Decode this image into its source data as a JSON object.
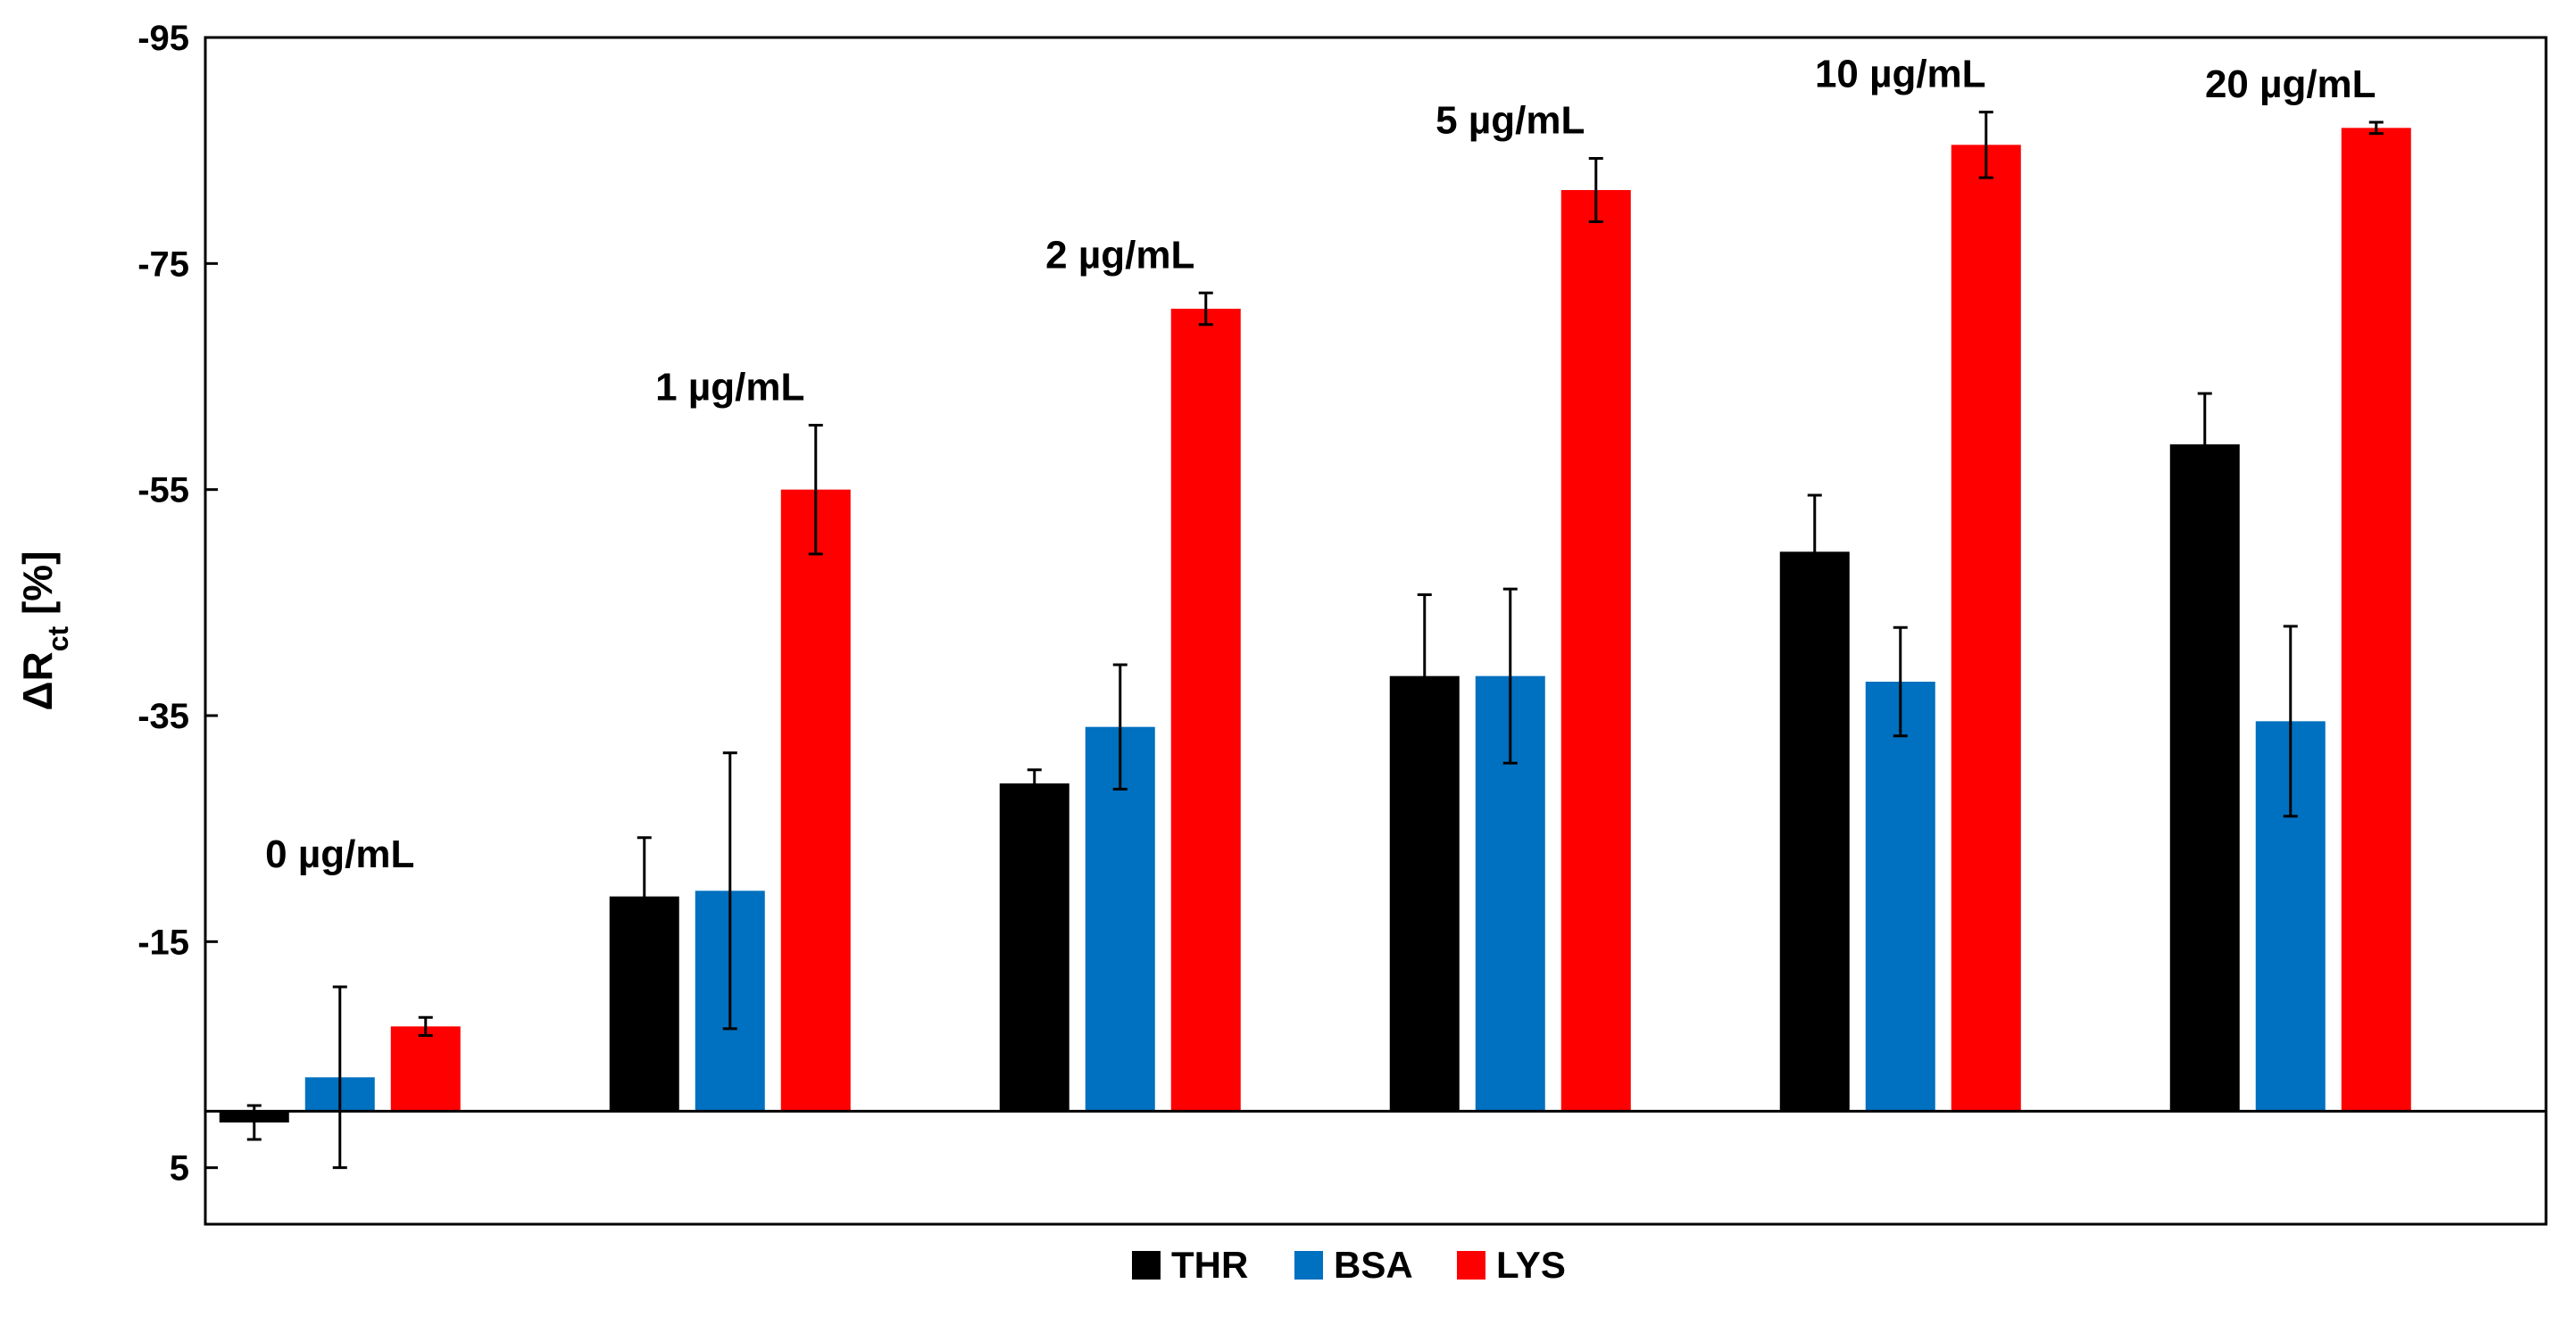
{
  "chart_data": {
    "type": "bar",
    "title": "",
    "xlabel": "",
    "ylabel": "ΔR",
    "ylabel_subscript": "ct",
    "ylabel_unit": " [%]",
    "ylim": [
      10,
      -95
    ],
    "y_axis_inverted": true,
    "yticks": [
      5,
      -15,
      -35,
      -55,
      -75,
      -95
    ],
    "ytick_labels": [
      "5",
      "-15",
      "-35",
      "-55",
      "-75",
      "-95"
    ],
    "baseline": 0,
    "grid": false,
    "legend_position": "bottom-center",
    "categories": [
      "0 µg/mL",
      "1 µg/mL",
      "2 µg/mL",
      "5 µg/mL",
      "10 µg/mL",
      "20 µg/mL"
    ],
    "series": [
      {
        "name": "THR",
        "color": "#000000",
        "values": [
          1,
          -19,
          -29,
          -38.5,
          -49.5,
          -59
        ],
        "errors": [
          1.5,
          5.2,
          1.2,
          7.2,
          5,
          4.5
        ]
      },
      {
        "name": "BSA",
        "color": "#0070C0",
        "values": [
          -3,
          -19.5,
          -34,
          -38.5,
          -38,
          -34.5
        ],
        "errors": [
          8,
          12.2,
          5.5,
          7.7,
          4.8,
          8.4
        ]
      },
      {
        "name": "LYS",
        "color": "#FF0000",
        "values": [
          -7.5,
          -55,
          -71,
          -81.5,
          -85.5,
          -87
        ],
        "errors": [
          0.8,
          5.7,
          1.4,
          2.8,
          2.9,
          0.5
        ]
      }
    ]
  }
}
